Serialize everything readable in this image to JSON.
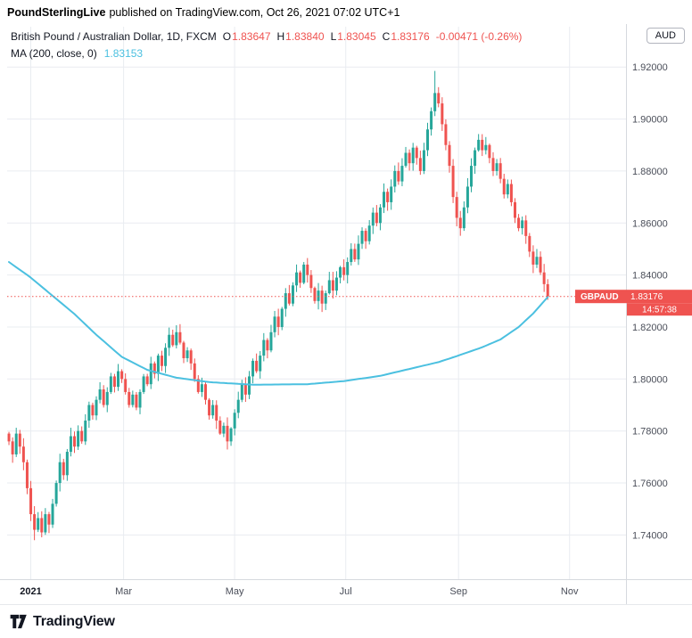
{
  "topbar": {
    "source": "PoundSterlingLive",
    "rest": "published on TradingView.com, Oct 26, 2021 07:02 UTC+1"
  },
  "legend": {
    "title": "British Pound / Australian Dollar, 1D, FXCM",
    "o_label": "O",
    "o": "1.83647",
    "h_label": "H",
    "h": "1.83840",
    "l_label": "L",
    "l": "1.83045",
    "c_label": "C",
    "c": "1.83176",
    "change": "-0.00471 (-0.26%)",
    "ma_label": "MA (200, close, 0)",
    "ma_value": "1.83153"
  },
  "price_scale": {
    "currency": "AUD"
  },
  "price_tag": {
    "symbol": "GBPAUD",
    "price": "1.83176",
    "countdown": "14:57:38"
  },
  "footer": {
    "brand": "TradingView"
  },
  "colors": {
    "up": "#26a69a",
    "down": "#ef5350",
    "ma": "#4bc0e0",
    "grid": "#e9ecf1",
    "separator": "#d6d9de",
    "axis_text": "#4a4e59",
    "dark_text": "#131722",
    "tag_text": "#ffffff"
  },
  "chart_data": {
    "type": "candlestick",
    "symbol": "GBPAUD",
    "timeframe": "1D",
    "exchange": "FXCM",
    "title": "British Pound / Australian Dollar, 1D, FXCM",
    "ylim": [
      1.723,
      1.9355
    ],
    "x_slots": 170,
    "current_price": 1.83176,
    "first_open": 1.779,
    "closes": [
      1.776,
      1.771,
      1.779,
      1.774,
      1.768,
      1.758,
      1.748,
      1.742,
      1.7465,
      1.741,
      1.748,
      1.744,
      1.752,
      1.76,
      1.768,
      1.763,
      1.772,
      1.778,
      1.774,
      1.78,
      1.776,
      1.784,
      1.79,
      1.786,
      1.792,
      1.796,
      1.79,
      1.795,
      1.801,
      1.797,
      1.803,
      1.8,
      1.795,
      1.79,
      1.794,
      1.789,
      1.795,
      1.801,
      1.798,
      1.806,
      1.802,
      1.809,
      1.805,
      1.812,
      1.817,
      1.813,
      1.818,
      1.814,
      1.808,
      1.811,
      1.806,
      1.8,
      1.795,
      1.798,
      1.792,
      1.786,
      1.79,
      1.784,
      1.779,
      1.782,
      1.776,
      1.781,
      1.787,
      1.792,
      1.798,
      1.794,
      1.801,
      1.807,
      1.803,
      1.809,
      1.815,
      1.811,
      1.818,
      1.824,
      1.82,
      1.827,
      1.833,
      1.829,
      1.836,
      1.841,
      1.837,
      1.844,
      1.84,
      1.835,
      1.83,
      1.834,
      1.829,
      1.833,
      1.838,
      1.834,
      1.839,
      1.843,
      1.84,
      1.845,
      1.85,
      1.846,
      1.852,
      1.857,
      1.853,
      1.859,
      1.864,
      1.86,
      1.866,
      1.872,
      1.868,
      1.874,
      1.88,
      1.876,
      1.882,
      1.887,
      1.883,
      1.889,
      1.885,
      1.88,
      1.888,
      1.896,
      1.903,
      1.91,
      1.906,
      1.898,
      1.89,
      1.882,
      1.87,
      1.862,
      1.858,
      1.866,
      1.874,
      1.882,
      1.888,
      1.892,
      1.888,
      1.89,
      1.885,
      1.88,
      1.883,
      1.877,
      1.871,
      1.875,
      1.868,
      1.862,
      1.858,
      1.861,
      1.855,
      1.849,
      1.844,
      1.847,
      1.841,
      1.8365,
      1.83176
    ],
    "last_candle": {
      "o": 1.83647,
      "h": 1.8384,
      "l": 1.83045,
      "c": 1.83176
    },
    "overrides": {
      "spike_index": 117,
      "spike_high": 1.9185,
      "trough_index": 7,
      "trough_low": 1.738
    },
    "ma_label": "MA (200, close, 0)",
    "ma_last": 1.83153,
    "ma_anchors": [
      [
        0,
        1.845
      ],
      [
        6,
        1.839
      ],
      [
        12,
        1.832
      ],
      [
        18,
        1.825
      ],
      [
        24,
        1.817
      ],
      [
        31,
        1.8085
      ],
      [
        38,
        1.8035
      ],
      [
        46,
        1.8005
      ],
      [
        55,
        1.7988
      ],
      [
        67,
        1.7978
      ],
      [
        82,
        1.798
      ],
      [
        92,
        1.7992
      ],
      [
        102,
        1.8012
      ],
      [
        111,
        1.8042
      ],
      [
        118,
        1.8065
      ],
      [
        123,
        1.8088
      ],
      [
        130,
        1.8122
      ],
      [
        135,
        1.8152
      ],
      [
        140,
        1.82
      ],
      [
        144,
        1.8252
      ],
      [
        148,
        1.8315
      ]
    ],
    "y_ticks": [
      {
        "v": 1.92,
        "label": "1.92000"
      },
      {
        "v": 1.9,
        "label": "1.90000"
      },
      {
        "v": 1.88,
        "label": "1.88000"
      },
      {
        "v": 1.86,
        "label": "1.86000"
      },
      {
        "v": 1.84,
        "label": "1.84000"
      },
      {
        "v": 1.82,
        "label": "1.82000"
      },
      {
        "v": 1.8,
        "label": "1.80000"
      },
      {
        "v": 1.78,
        "label": "1.78000"
      },
      {
        "v": 1.76,
        "label": "1.76000"
      },
      {
        "v": 1.74,
        "label": "1.74000"
      }
    ],
    "x_ticks": [
      {
        "pos": 6,
        "label": "2021",
        "major": true
      },
      {
        "pos": 31.5,
        "label": "Mar"
      },
      {
        "pos": 62,
        "label": "May"
      },
      {
        "pos": 92.5,
        "label": "Jul"
      },
      {
        "pos": 123.5,
        "label": "Sep"
      },
      {
        "pos": 154,
        "label": "Nov"
      }
    ]
  }
}
